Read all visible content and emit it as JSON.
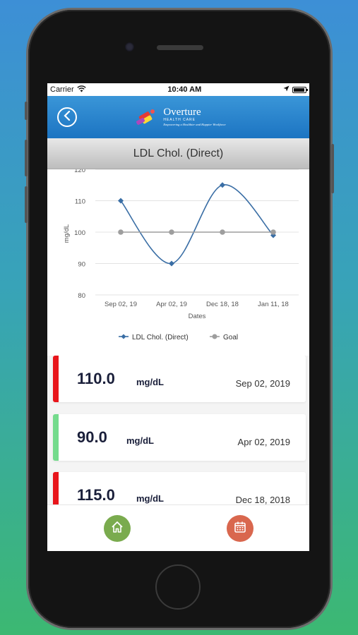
{
  "status_bar": {
    "carrier": "Carrier",
    "time": "10:40 AM"
  },
  "header": {
    "logo_title": "Overture",
    "logo_subtitle": "HEALTH CARE",
    "logo_tagline": "Empowering a Healthier and Happier Workforce"
  },
  "page": {
    "title": "LDL Chol. (Direct)"
  },
  "chart_data": {
    "type": "line",
    "categories": [
      "Sep 02, 19",
      "Apr 02, 19",
      "Dec 18, 18",
      "Jan 11, 18"
    ],
    "xlabel": "Dates",
    "ylabel": "mg/dL",
    "ylim": [
      80,
      120
    ],
    "yticks": [
      "120",
      "110",
      "100",
      "90",
      "80"
    ],
    "grid": true,
    "legend_position": "bottom",
    "series": [
      {
        "name": "LDL Chol. (Direct)",
        "values": [
          110,
          90,
          115,
          99
        ],
        "color": "#3a6ea5",
        "smooth": true,
        "marker": "diamond"
      },
      {
        "name": "Goal",
        "values": [
          100,
          100,
          100,
          100
        ],
        "color": "#9e9e9e",
        "marker": "circle"
      }
    ]
  },
  "readings": [
    {
      "value": "110.0",
      "unit": "mg/dL",
      "date": "Sep 02, 2019",
      "status_color": "#e8151b"
    },
    {
      "value": "90.0",
      "unit": "mg/dL",
      "date": "Apr 02, 2019",
      "status_color": "#74db8c"
    },
    {
      "value": "115.0",
      "unit": "mg/dL",
      "date": "Dec 18, 2018",
      "status_color": "#e8151b"
    }
  ],
  "tab_bar": {
    "home_color": "#7aab4e",
    "calendar_color": "#d9674e"
  },
  "icons": {
    "back": "chevron-left-icon",
    "wifi": "wifi-icon",
    "location": "location-arrow-icon",
    "battery": "battery-icon",
    "home": "home-icon",
    "calendar": "calendar-icon"
  }
}
